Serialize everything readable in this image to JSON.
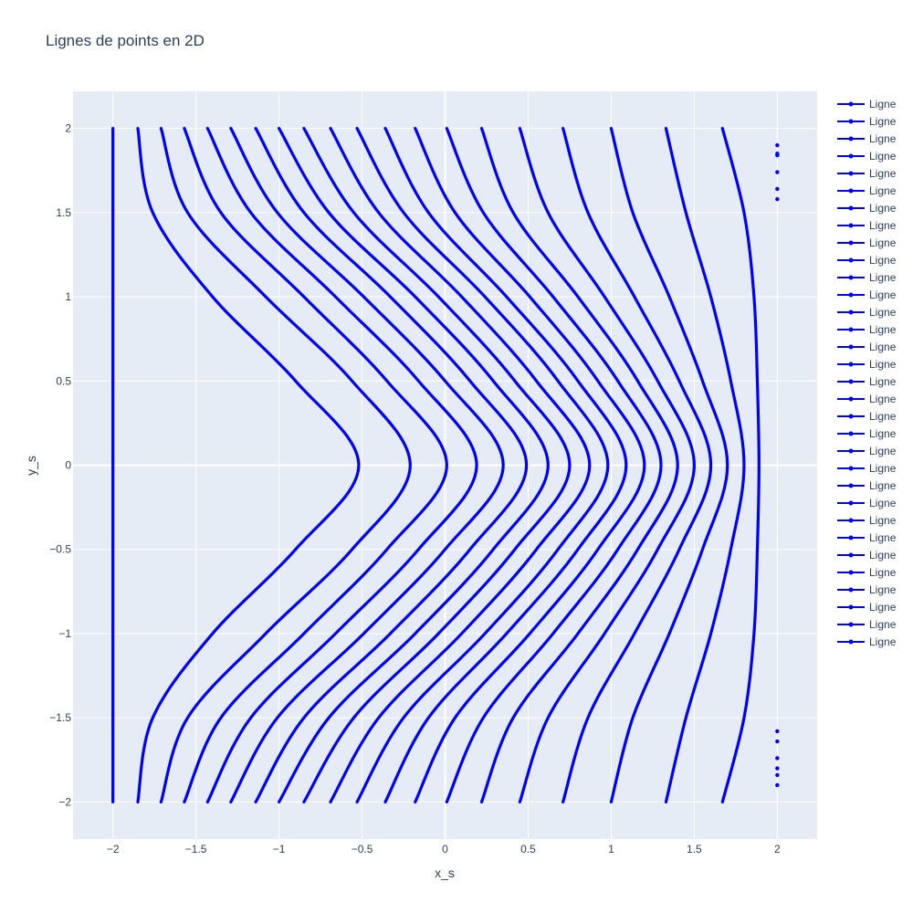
{
  "chart_data": {
    "type": "line",
    "title": "Lignes de points en 2D",
    "xlabel": "x_s",
    "ylabel": "y_s",
    "xlim": [
      -2.24,
      2.24
    ],
    "ylim": [
      -2.22,
      2.22
    ],
    "x_ticks": [
      -2,
      -1.5,
      -1,
      -0.5,
      0,
      0.5,
      1,
      1.5,
      2
    ],
    "x_tick_labels": [
      "−2",
      "−1.5",
      "−1",
      "−0.5",
      "0",
      "0.5",
      "1",
      "1.5",
      "2"
    ],
    "y_ticks": [
      -2,
      -1.5,
      -1,
      -0.5,
      0,
      0.5,
      1,
      1.5,
      2
    ],
    "y_tick_labels": [
      "−2",
      "−1.5",
      "−1",
      "−0.5",
      "0",
      "0.5",
      "1",
      "1.5",
      "2"
    ],
    "grid": true,
    "legend_position": "right",
    "line_color": "#0000ff",
    "plot_bg": "#e5ecf6",
    "grid_color": "#ffffff",
    "series": [
      {
        "name": "Ligne",
        "x": [
          -2,
          -2
        ],
        "y": [
          -2,
          2
        ]
      },
      {
        "name": "Ligne",
        "x": [
          -1.85,
          -1.76,
          -1.4,
          -0.9,
          -0.52,
          -0.9,
          -1.4,
          -1.76,
          -1.85
        ],
        "y": [
          2,
          1.5,
          1.0,
          0.5,
          0,
          -0.5,
          -1.0,
          -1.5,
          -2
        ]
      },
      {
        "name": "Ligne",
        "x": [
          -1.71,
          -1.55,
          -1.08,
          -0.56,
          -0.21,
          -0.56,
          -1.08,
          -1.55,
          -1.71
        ],
        "y": [
          2,
          1.5,
          1.0,
          0.5,
          0,
          -0.5,
          -1.0,
          -1.5,
          -2
        ]
      },
      {
        "name": "Ligne",
        "x": [
          -1.57,
          -1.35,
          -0.85,
          -0.35,
          0.01,
          -0.35,
          -0.85,
          -1.35,
          -1.57
        ],
        "y": [
          2,
          1.5,
          1.0,
          0.5,
          0,
          -0.5,
          -1.0,
          -1.5,
          -2
        ]
      },
      {
        "name": "Ligne",
        "x": [
          -1.43,
          -1.17,
          -0.66,
          -0.16,
          0.19,
          -0.16,
          -0.66,
          -1.17,
          -1.43
        ],
        "y": [
          2,
          1.5,
          1.0,
          0.5,
          0,
          -0.5,
          -1.0,
          -1.5,
          -2
        ]
      },
      {
        "name": "Ligne",
        "x": [
          -1.29,
          -1.01,
          -0.49,
          0.0,
          0.35,
          0.0,
          -0.49,
          -1.01,
          -1.29
        ],
        "y": [
          2,
          1.5,
          1.0,
          0.5,
          0,
          -0.5,
          -1.0,
          -1.5,
          -2
        ]
      },
      {
        "name": "Ligne",
        "x": [
          -1.14,
          -0.85,
          -0.33,
          0.15,
          0.49,
          0.15,
          -0.33,
          -0.85,
          -1.14
        ],
        "y": [
          2,
          1.5,
          1.0,
          0.5,
          0,
          -0.5,
          -1.0,
          -1.5,
          -2
        ]
      },
      {
        "name": "Ligne",
        "x": [
          -1.0,
          -0.7,
          -0.18,
          0.29,
          0.62,
          0.29,
          -0.18,
          -0.7,
          -1.0
        ],
        "y": [
          2,
          1.5,
          1.0,
          0.5,
          0,
          -0.5,
          -1.0,
          -1.5,
          -2
        ]
      },
      {
        "name": "Ligne",
        "x": [
          -0.85,
          -0.55,
          -0.04,
          0.42,
          0.75,
          0.42,
          -0.04,
          -0.55,
          -0.85
        ],
        "y": [
          2,
          1.5,
          1.0,
          0.5,
          0,
          -0.5,
          -1.0,
          -1.5,
          -2
        ]
      },
      {
        "name": "Ligne",
        "x": [
          -0.69,
          -0.4,
          0.1,
          0.55,
          0.87,
          0.55,
          0.1,
          -0.4,
          -0.69
        ],
        "y": [
          2,
          1.5,
          1.0,
          0.5,
          0,
          -0.5,
          -1.0,
          -1.5,
          -2
        ]
      },
      {
        "name": "Ligne",
        "x": [
          -0.53,
          -0.25,
          0.24,
          0.68,
          0.98,
          0.68,
          0.24,
          -0.25,
          -0.53
        ],
        "y": [
          2,
          1.5,
          1.0,
          0.5,
          0,
          -0.5,
          -1.0,
          -1.5,
          -2
        ]
      },
      {
        "name": "Ligne",
        "x": [
          -0.36,
          -0.1,
          0.37,
          0.8,
          1.09,
          0.8,
          0.37,
          -0.1,
          -0.36
        ],
        "y": [
          2,
          1.5,
          1.0,
          0.5,
          0,
          -0.5,
          -1.0,
          -1.5,
          -2
        ]
      },
      {
        "name": "Ligne",
        "x": [
          -0.18,
          0.06,
          0.51,
          0.92,
          1.2,
          0.92,
          0.51,
          0.06,
          -0.18
        ],
        "y": [
          2,
          1.5,
          1.0,
          0.5,
          0,
          -0.5,
          -1.0,
          -1.5,
          -2
        ]
      },
      {
        "name": "Ligne",
        "x": [
          0.01,
          0.23,
          0.65,
          1.04,
          1.3,
          1.04,
          0.65,
          0.23,
          0.01
        ],
        "y": [
          2,
          1.5,
          1.0,
          0.5,
          0,
          -0.5,
          -1.0,
          -1.5,
          -2
        ]
      },
      {
        "name": "Ligne",
        "x": [
          0.22,
          0.41,
          0.8,
          1.16,
          1.4,
          1.16,
          0.8,
          0.41,
          0.22
        ],
        "y": [
          2,
          1.5,
          1.0,
          0.5,
          0,
          -0.5,
          -1.0,
          -1.5,
          -2
        ]
      },
      {
        "name": "Ligne",
        "x": [
          0.45,
          0.62,
          0.96,
          1.28,
          1.5,
          1.28,
          0.96,
          0.62,
          0.45
        ],
        "y": [
          2,
          1.5,
          1.0,
          0.5,
          0,
          -0.5,
          -1.0,
          -1.5,
          -2
        ]
      },
      {
        "name": "Ligne",
        "x": [
          0.71,
          0.86,
          1.14,
          1.41,
          1.6,
          1.41,
          1.14,
          0.86,
          0.71
        ],
        "y": [
          2,
          1.5,
          1.0,
          0.5,
          0,
          -0.5,
          -1.0,
          -1.5,
          -2
        ]
      },
      {
        "name": "Ligne",
        "x": [
          1.0,
          1.13,
          1.35,
          1.55,
          1.7,
          1.55,
          1.35,
          1.13,
          1.0
        ],
        "y": [
          2,
          1.5,
          1.0,
          0.5,
          0,
          -0.5,
          -1.0,
          -1.5,
          -2
        ]
      },
      {
        "name": "Ligne",
        "x": [
          1.33,
          1.45,
          1.6,
          1.72,
          1.8,
          1.72,
          1.6,
          1.45,
          1.33
        ],
        "y": [
          2,
          1.5,
          1.0,
          0.5,
          0,
          -0.5,
          -1.0,
          -1.5,
          -2
        ]
      },
      {
        "name": "Ligne",
        "x": [
          1.67,
          1.8,
          1.86,
          1.88,
          1.89,
          1.88,
          1.86,
          1.8,
          1.67
        ],
        "y": [
          2,
          1.5,
          1.0,
          0.5,
          0,
          -0.5,
          -1.0,
          -1.5,
          -2
        ]
      },
      {
        "name": "Ligne",
        "x": [
          2
        ],
        "y": [
          1.9
        ]
      },
      {
        "name": "Ligne",
        "x": [
          2
        ],
        "y": [
          1.85
        ]
      },
      {
        "name": "Ligne",
        "x": [
          2
        ],
        "y": [
          1.74
        ]
      },
      {
        "name": "Ligne",
        "x": [
          2
        ],
        "y": [
          1.64
        ]
      },
      {
        "name": "Ligne",
        "x": [
          2
        ],
        "y": [
          1.58
        ]
      },
      {
        "name": "Ligne",
        "x": [
          2
        ],
        "y": [
          -1.58
        ]
      },
      {
        "name": "Ligne",
        "x": [
          2
        ],
        "y": [
          -1.64
        ]
      },
      {
        "name": "Ligne",
        "x": [
          2
        ],
        "y": [
          -1.74
        ]
      },
      {
        "name": "Ligne",
        "x": [
          2
        ],
        "y": [
          -1.8
        ]
      },
      {
        "name": "Ligne",
        "x": [
          2
        ],
        "y": [
          -1.84
        ]
      },
      {
        "name": "Ligne",
        "x": [
          2
        ],
        "y": [
          -1.9
        ]
      },
      {
        "name": "Ligne",
        "x": [
          2
        ],
        "y": [
          1.84
        ]
      }
    ]
  }
}
